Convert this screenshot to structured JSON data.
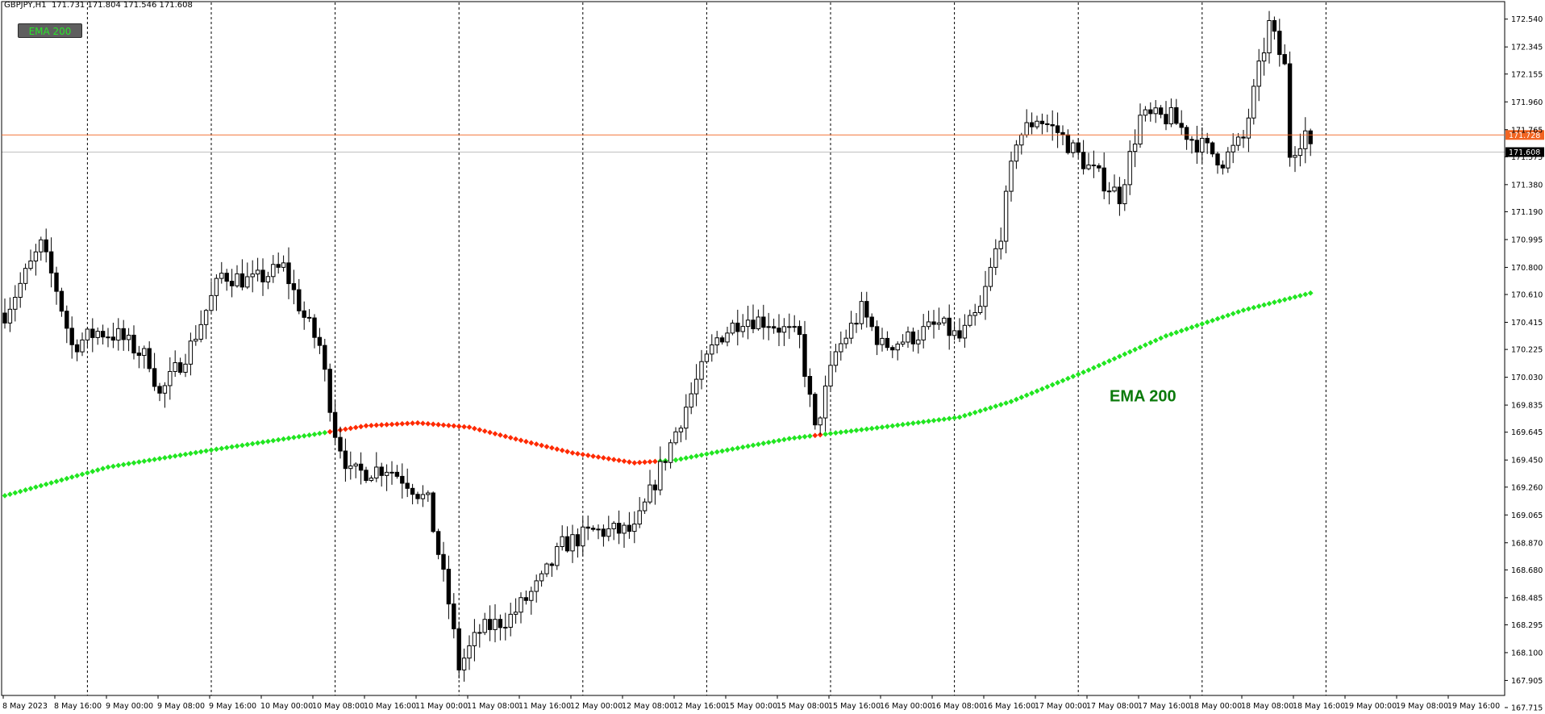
{
  "header": {
    "symbol": "GBPJPY,H1",
    "ohlc": "171.731 171.804 171.546 171.608"
  },
  "indicator_button": {
    "label": "EMA 200"
  },
  "price_lines": [
    {
      "value": 171.728,
      "label": "171.728",
      "color": "#f26522",
      "text_color": "#ffffff"
    },
    {
      "value": 171.608,
      "label": "171.608",
      "color": "#000000",
      "text_color": "#ffffff"
    }
  ],
  "colors": {
    "background": "#ffffff",
    "grid": "#000000",
    "candle": "#000000",
    "ema_up": "#21e621",
    "ema_down": "#ff2a00",
    "ema_label": "#0b7a0b"
  },
  "chart_data": {
    "type": "candlestick",
    "symbol": "GBPJPY",
    "timeframe": "H1",
    "ylim": [
      167.8,
      172.64
    ],
    "y_ticks": [
      "172.540",
      "172.345",
      "172.155",
      "171.960",
      "171.765",
      "171.575",
      "171.380",
      "171.190",
      "170.995",
      "170.800",
      "170.610",
      "170.415",
      "170.225",
      "170.030",
      "169.835",
      "169.645",
      "169.450",
      "169.260",
      "169.065",
      "168.870",
      "168.680",
      "168.485",
      "168.295",
      "168.100",
      "167.905",
      "167.715"
    ],
    "x_labels": [
      "8 May 2023",
      "8 May 16:00",
      "9 May 00:00",
      "9 May 08:00",
      "9 May 16:00",
      "10 May 00:00",
      "10 May 08:00",
      "10 May 16:00",
      "11 May 00:00",
      "11 May 08:00",
      "11 May 16:00",
      "12 May 00:00",
      "12 May 08:00",
      "12 May 16:00",
      "15 May 00:00",
      "15 May 08:00",
      "15 May 16:00",
      "16 May 00:00",
      "16 May 08:00",
      "16 May 16:00",
      "17 May 00:00",
      "17 May 08:00",
      "17 May 16:00",
      "18 May 00:00",
      "18 May 08:00",
      "18 May 16:00",
      "19 May 00:00",
      "19 May 08:00",
      "19 May 16:00"
    ],
    "candle_count": 254,
    "ema": {
      "name": "EMA 200",
      "period": 200,
      "anchors": [
        {
          "bar": 0,
          "value": 169.2
        },
        {
          "bar": 20,
          "value": 169.4
        },
        {
          "bar": 40,
          "value": 169.52
        },
        {
          "bar": 60,
          "value": 169.63
        },
        {
          "bar": 70,
          "value": 169.69
        },
        {
          "bar": 80,
          "value": 169.71
        },
        {
          "bar": 90,
          "value": 169.68
        },
        {
          "bar": 102,
          "value": 169.57
        },
        {
          "bar": 110,
          "value": 169.5
        },
        {
          "bar": 122,
          "value": 169.43
        },
        {
          "bar": 130,
          "value": 169.45
        },
        {
          "bar": 140,
          "value": 169.52
        },
        {
          "bar": 152,
          "value": 169.6
        },
        {
          "bar": 170,
          "value": 169.68
        },
        {
          "bar": 185,
          "value": 169.75
        },
        {
          "bar": 195,
          "value": 169.86
        },
        {
          "bar": 210,
          "value": 170.08
        },
        {
          "bar": 225,
          "value": 170.32
        },
        {
          "bar": 240,
          "value": 170.5
        },
        {
          "bar": 253,
          "value": 170.62
        }
      ],
      "down_range": [
        63,
        126
      ],
      "down_segment_2": [
        157,
        158
      ]
    },
    "price_path": [
      {
        "bar": 0,
        "value": 170.48
      },
      {
        "bar": 7,
        "value": 170.95
      },
      {
        "bar": 10,
        "value": 170.65
      },
      {
        "bar": 13,
        "value": 170.25
      },
      {
        "bar": 18,
        "value": 170.35
      },
      {
        "bar": 22,
        "value": 170.32
      },
      {
        "bar": 28,
        "value": 170.15
      },
      {
        "bar": 30,
        "value": 169.9
      },
      {
        "bar": 36,
        "value": 170.25
      },
      {
        "bar": 42,
        "value": 170.75
      },
      {
        "bar": 48,
        "value": 170.7
      },
      {
        "bar": 54,
        "value": 170.8
      },
      {
        "bar": 58,
        "value": 170.45
      },
      {
        "bar": 61,
        "value": 170.25
      },
      {
        "bar": 64,
        "value": 169.65
      },
      {
        "bar": 67,
        "value": 169.35
      },
      {
        "bar": 74,
        "value": 169.4
      },
      {
        "bar": 78,
        "value": 169.3
      },
      {
        "bar": 82,
        "value": 169.15
      },
      {
        "bar": 86,
        "value": 168.45
      },
      {
        "bar": 88,
        "value": 168.0
      },
      {
        "bar": 92,
        "value": 168.25
      },
      {
        "bar": 98,
        "value": 168.35
      },
      {
        "bar": 104,
        "value": 168.6
      },
      {
        "bar": 108,
        "value": 168.85
      },
      {
        "bar": 114,
        "value": 168.95
      },
      {
        "bar": 118,
        "value": 168.95
      },
      {
        "bar": 122,
        "value": 168.95
      },
      {
        "bar": 126,
        "value": 169.3
      },
      {
        "bar": 130,
        "value": 169.65
      },
      {
        "bar": 134,
        "value": 170.0
      },
      {
        "bar": 138,
        "value": 170.3
      },
      {
        "bar": 143,
        "value": 170.45
      },
      {
        "bar": 148,
        "value": 170.42
      },
      {
        "bar": 154,
        "value": 170.3
      },
      {
        "bar": 157,
        "value": 169.65
      },
      {
        "bar": 161,
        "value": 170.2
      },
      {
        "bar": 166,
        "value": 170.5
      },
      {
        "bar": 170,
        "value": 170.25
      },
      {
        "bar": 175,
        "value": 170.3
      },
      {
        "bar": 181,
        "value": 170.4
      },
      {
        "bar": 185,
        "value": 170.3
      },
      {
        "bar": 189,
        "value": 170.5
      },
      {
        "bar": 193,
        "value": 171.05
      },
      {
        "bar": 196,
        "value": 171.7
      },
      {
        "bar": 200,
        "value": 171.85
      },
      {
        "bar": 204,
        "value": 171.75
      },
      {
        "bar": 210,
        "value": 171.5
      },
      {
        "bar": 216,
        "value": 171.3
      },
      {
        "bar": 220,
        "value": 171.85
      },
      {
        "bar": 226,
        "value": 171.85
      },
      {
        "bar": 230,
        "value": 171.7
      },
      {
        "bar": 236,
        "value": 171.55
      },
      {
        "bar": 240,
        "value": 171.7
      },
      {
        "bar": 245,
        "value": 172.5
      },
      {
        "bar": 248,
        "value": 172.2
      },
      {
        "bar": 249,
        "value": 171.6
      },
      {
        "bar": 252,
        "value": 171.75
      },
      {
        "bar": 253,
        "value": 171.608
      }
    ],
    "annotation": {
      "text": "EMA 200",
      "near_bar": 215,
      "near_value": 169.9
    }
  }
}
